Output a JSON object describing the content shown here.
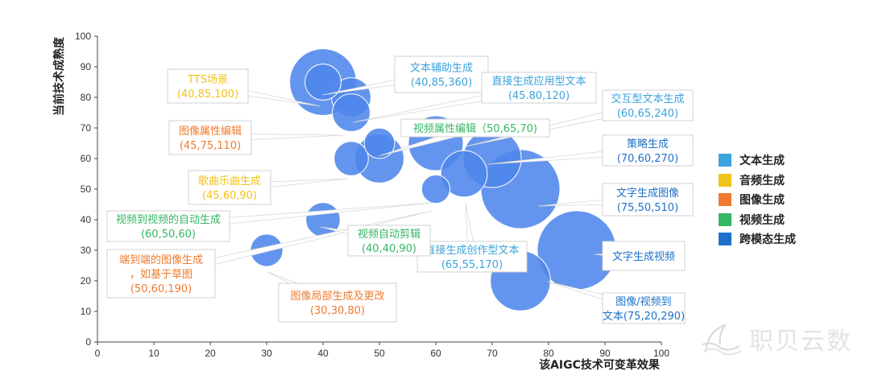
{
  "chart_data": {
    "type": "bubble",
    "xlabel": "该AIGC技术可变革效果",
    "ylabel": "当前技术成熟度",
    "xlim": [
      0,
      100
    ],
    "ylim": [
      0,
      100
    ],
    "xticks": [
      0,
      10,
      20,
      30,
      40,
      50,
      60,
      70,
      80,
      90,
      100
    ],
    "yticks": [
      0,
      10,
      20,
      30,
      40,
      50,
      60,
      70,
      80,
      90,
      100
    ],
    "grid": false,
    "legend_position": "right",
    "categories": [
      {
        "name": "文本生成",
        "color": "#3aa3dc"
      },
      {
        "name": "音频生成",
        "color": "#f2c318"
      },
      {
        "name": "图像生成",
        "color": "#f07a2c"
      },
      {
        "name": "视频生成",
        "color": "#35b665"
      },
      {
        "name": "跨模态生成",
        "color": "#1d71c9"
      }
    ],
    "bubble_color": "#4f86ec",
    "points": [
      {
        "label": "TTS场景",
        "value_text": "(40,85,100)",
        "category": "音频生成",
        "x": 40,
        "y": 85,
        "size": 100
      },
      {
        "label": "文本辅助生成",
        "value_text": "(40,85,360)",
        "category": "文本生成",
        "x": 40,
        "y": 85,
        "size": 360
      },
      {
        "label": "直接生成应用型文本",
        "value_text": "(45.80,120)",
        "category": "文本生成",
        "x": 45,
        "y": 80,
        "size": 120
      },
      {
        "label": "图像属性编辑",
        "value_text": "(45,75,110)",
        "category": "图像生成",
        "x": 45,
        "y": 75,
        "size": 110
      },
      {
        "label": "视频属性编辑",
        "value_text": "(50,65,70)",
        "category": "视频生成",
        "x": 50,
        "y": 65,
        "size": 70
      },
      {
        "label": "交互型文本生成",
        "value_text": "(60,65,240)",
        "category": "文本生成",
        "x": 60,
        "y": 65,
        "size": 240
      },
      {
        "label": "策略生成",
        "value_text": "(70,60,270)",
        "category": "跨模态生成",
        "x": 70,
        "y": 60,
        "size": 270
      },
      {
        "label": "歌曲乐曲生成",
        "value_text": "(45,60,90)",
        "category": "音频生成",
        "x": 45,
        "y": 60,
        "size": 90
      },
      {
        "label": "视频到视频的自动生成",
        "value_text": "(60,50,60)",
        "category": "视频生成",
        "x": 60,
        "y": 50,
        "size": 60
      },
      {
        "label": "端到端的图像生成，如基于草图",
        "value_text": "(50,60,190)",
        "category": "图像生成",
        "x": 50,
        "y": 60,
        "size": 190
      },
      {
        "label": "直接生成创作型文本",
        "value_text": "(65,55,170)",
        "category": "文本生成",
        "x": 65,
        "y": 55,
        "size": 170
      },
      {
        "label": "视频自动剪辑",
        "value_text": "(40,40,90)",
        "category": "视频生成",
        "x": 40,
        "y": 40,
        "size": 90
      },
      {
        "label": "文字生成图像",
        "value_text": "(75,50,510)",
        "category": "跨模态生成",
        "x": 75,
        "y": 50,
        "size": 510
      },
      {
        "label": "文字生成视频",
        "value_text": "",
        "category": "跨模态生成",
        "x": 85,
        "y": 30,
        "size": 510
      },
      {
        "label": "图像局部生成及更改",
        "value_text": "(30,30,80)",
        "category": "图像生成",
        "x": 30,
        "y": 30,
        "size": 80
      },
      {
        "label": "图像/视频到文本",
        "value_text": "(75,20,290)",
        "category": "跨模态生成",
        "x": 75,
        "y": 20,
        "size": 290
      }
    ]
  },
  "legend": {
    "items": [
      {
        "label": "文本生成",
        "color": "#3aa3dc"
      },
      {
        "label": "音频生成",
        "color": "#f2c318"
      },
      {
        "label": "图像生成",
        "color": "#f07a2c"
      },
      {
        "label": "视频生成",
        "color": "#35b665"
      },
      {
        "label": "跨模态生成",
        "color": "#1d71c9"
      }
    ]
  },
  "watermark": {
    "text": "职贝云数"
  }
}
